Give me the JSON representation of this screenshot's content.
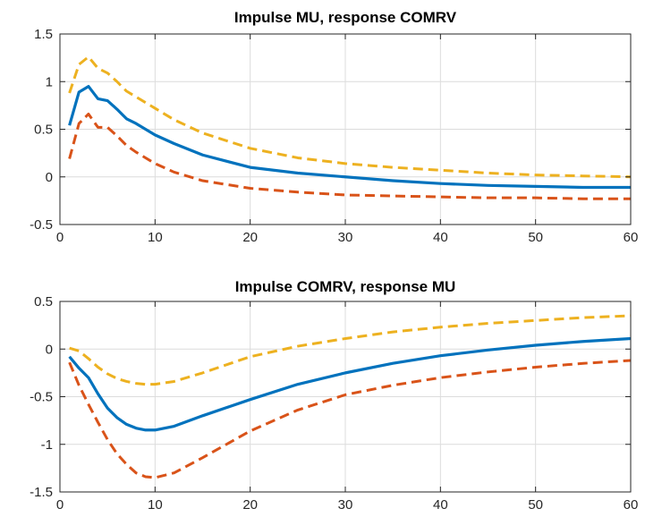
{
  "chart_data": [
    {
      "type": "line",
      "title": "Impulse MU, response COMRV",
      "xlabel": "",
      "ylabel": "",
      "xlim": [
        0,
        60
      ],
      "ylim": [
        -0.5,
        1.5
      ],
      "xticks": [
        0,
        10,
        20,
        30,
        40,
        50,
        60
      ],
      "yticks": [
        -0.5,
        0,
        0.5,
        1,
        1.5
      ],
      "xtick_labels": [
        "0",
        "10",
        "20",
        "30",
        "40",
        "50",
        "60"
      ],
      "ytick_labels": [
        "-0.5",
        "0",
        "0.5",
        "1",
        "1.5"
      ],
      "grid": true,
      "x": [
        1,
        2,
        3,
        4,
        5,
        6,
        7,
        8,
        10,
        12,
        15,
        20,
        25,
        30,
        35,
        40,
        45,
        50,
        55,
        60
      ],
      "series": [
        {
          "color": "#0072BD",
          "style": "solid",
          "values": [
            0.54,
            0.89,
            0.95,
            0.82,
            0.8,
            0.71,
            0.61,
            0.56,
            0.44,
            0.35,
            0.23,
            0.1,
            0.04,
            0.0,
            -0.04,
            -0.07,
            -0.09,
            -0.1,
            -0.11,
            -0.11
          ]
        },
        {
          "color": "#EDB120",
          "style": "dashed",
          "values": [
            0.88,
            1.18,
            1.26,
            1.14,
            1.09,
            1.0,
            0.9,
            0.84,
            0.72,
            0.6,
            0.46,
            0.3,
            0.2,
            0.14,
            0.1,
            0.07,
            0.04,
            0.02,
            0.01,
            0.0
          ]
        },
        {
          "color": "#D95319",
          "style": "dashed",
          "values": [
            0.19,
            0.56,
            0.66,
            0.52,
            0.52,
            0.43,
            0.33,
            0.26,
            0.14,
            0.05,
            -0.04,
            -0.12,
            -0.16,
            -0.19,
            -0.2,
            -0.21,
            -0.22,
            -0.22,
            -0.23,
            -0.23
          ]
        }
      ]
    },
    {
      "type": "line",
      "title": "Impulse COMRV, response MU",
      "xlabel": "",
      "ylabel": "",
      "xlim": [
        0,
        60
      ],
      "ylim": [
        -1.5,
        0.5
      ],
      "xticks": [
        0,
        10,
        20,
        30,
        40,
        50,
        60
      ],
      "yticks": [
        -1.5,
        -1,
        -0.5,
        0,
        0.5
      ],
      "xtick_labels": [
        "0",
        "10",
        "20",
        "30",
        "40",
        "50",
        "60"
      ],
      "ytick_labels": [
        "-1.5",
        "-1",
        "-0.5",
        "0",
        "0.5"
      ],
      "grid": true,
      "x": [
        1,
        2,
        3,
        4,
        5,
        6,
        7,
        8,
        9,
        10,
        12,
        15,
        20,
        25,
        30,
        35,
        40,
        45,
        50,
        55,
        60
      ],
      "series": [
        {
          "color": "#0072BD",
          "style": "solid",
          "values": [
            -0.08,
            -0.2,
            -0.3,
            -0.47,
            -0.62,
            -0.72,
            -0.79,
            -0.83,
            -0.85,
            -0.85,
            -0.81,
            -0.7,
            -0.53,
            -0.37,
            -0.25,
            -0.15,
            -0.07,
            -0.01,
            0.04,
            0.08,
            0.11
          ]
        },
        {
          "color": "#EDB120",
          "style": "dashed",
          "values": [
            0.01,
            -0.02,
            -0.1,
            -0.19,
            -0.26,
            -0.31,
            -0.34,
            -0.36,
            -0.37,
            -0.37,
            -0.34,
            -0.25,
            -0.08,
            0.03,
            0.11,
            0.18,
            0.23,
            0.27,
            0.3,
            0.33,
            0.35
          ]
        },
        {
          "color": "#D95319",
          "style": "dashed",
          "values": [
            -0.14,
            -0.38,
            -0.58,
            -0.77,
            -0.95,
            -1.1,
            -1.21,
            -1.3,
            -1.34,
            -1.35,
            -1.3,
            -1.14,
            -0.86,
            -0.64,
            -0.48,
            -0.38,
            -0.3,
            -0.24,
            -0.19,
            -0.15,
            -0.12
          ]
        }
      ]
    }
  ]
}
